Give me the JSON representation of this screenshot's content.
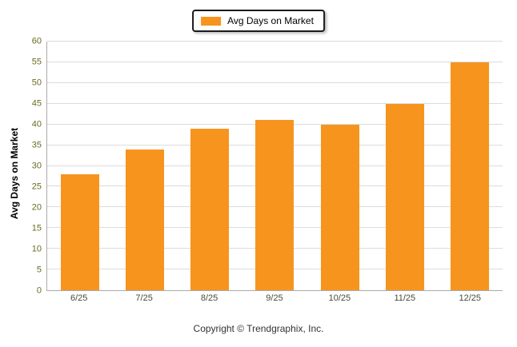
{
  "chart_data": {
    "type": "bar",
    "title": "",
    "legend": {
      "label": "Avg Days on Market",
      "color": "#F7941E",
      "position": "top-center"
    },
    "categories": [
      "6/25",
      "7/25",
      "8/25",
      "9/25",
      "10/25",
      "11/25",
      "12/25"
    ],
    "values": [
      28,
      34,
      39,
      41,
      40,
      45,
      55
    ],
    "xlabel": "",
    "ylabel": "Avg Days on Market",
    "ylim": [
      0,
      60
    ],
    "ytick_step": 5,
    "grid": true,
    "bar_color": "#F7941E",
    "footer": "Copyright © Trendgraphix, Inc."
  }
}
